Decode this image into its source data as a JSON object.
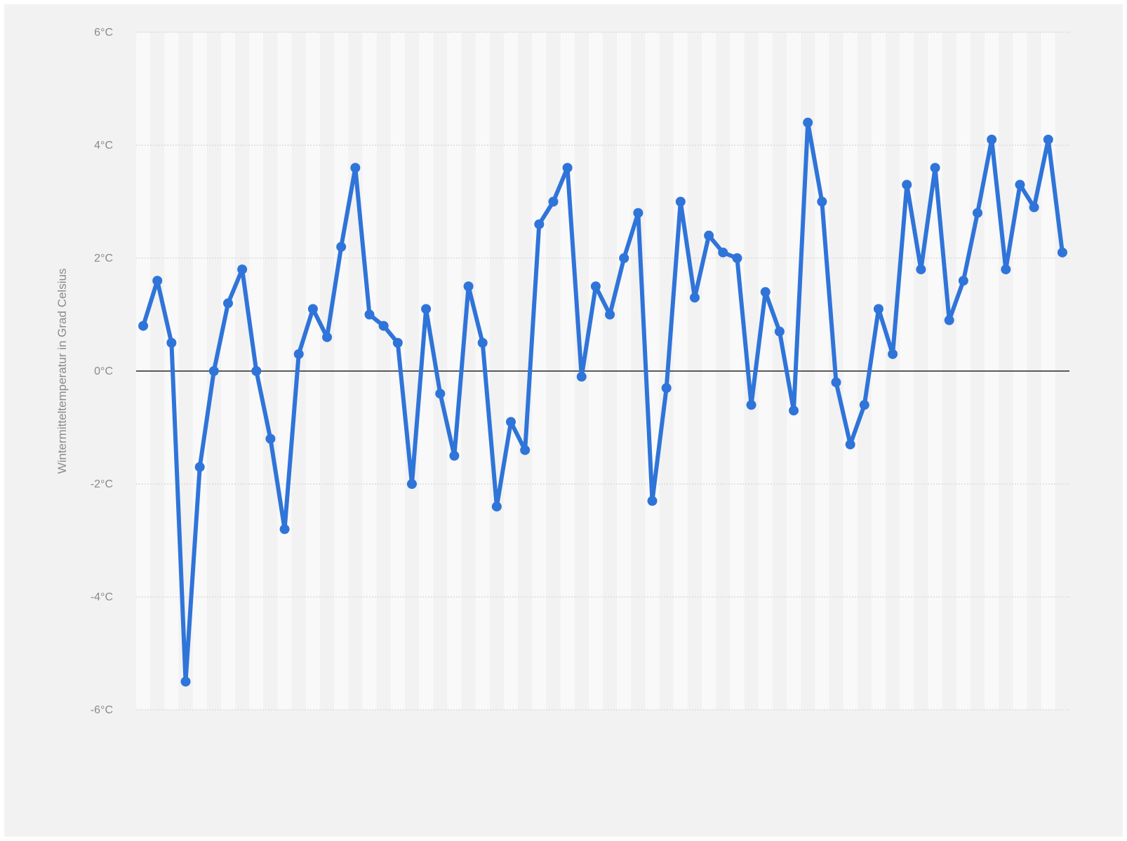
{
  "chart_data": {
    "type": "line",
    "title": "",
    "xlabel": "",
    "ylabel": "Wintermitteltemperatur in Grad Celsius",
    "ylim": [
      -6,
      6
    ],
    "y_ticks": [
      6,
      4,
      2,
      0,
      -2,
      -4,
      -6
    ],
    "y_tick_labels": [
      "6°C",
      "4°C",
      "2°C",
      "0°C",
      "-2°C",
      "-4°C",
      "-6°C"
    ],
    "grid": "horizontal dotted",
    "zero_line": true,
    "x_tick_labels_visible": false,
    "series": [
      {
        "color": "#2f74d9",
        "values": [
          0.8,
          1.6,
          0.5,
          -5.5,
          -1.7,
          0.0,
          1.2,
          1.8,
          0.0,
          -1.2,
          -2.8,
          0.3,
          1.1,
          0.6,
          2.2,
          3.6,
          1.0,
          0.8,
          0.5,
          -2.0,
          1.1,
          -0.4,
          -1.5,
          1.5,
          0.5,
          -2.4,
          -0.9,
          -1.4,
          2.6,
          3.0,
          3.6,
          -0.1,
          1.5,
          1.0,
          2.0,
          2.8,
          -2.3,
          -0.3,
          3.0,
          1.3,
          2.4,
          2.1,
          2.0,
          -0.6,
          1.4,
          0.7,
          -0.7,
          4.4,
          3.0,
          -0.2,
          -1.3,
          -0.6,
          1.1,
          0.3,
          3.3,
          1.8,
          3.6,
          0.9,
          1.6,
          2.8,
          4.1,
          1.8,
          3.3,
          2.9,
          4.1,
          2.1
        ]
      }
    ]
  }
}
